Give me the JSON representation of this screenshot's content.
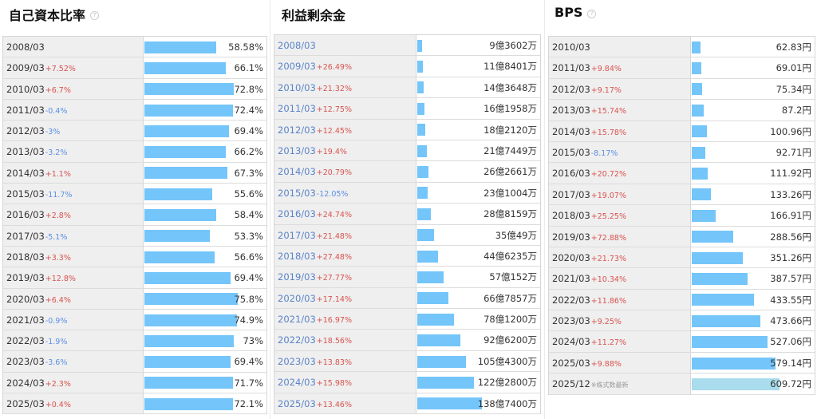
{
  "panels": [
    {
      "title": "自己資本比率",
      "rows": [
        {
          "period": "2008/03",
          "change": "",
          "dir": "",
          "value": "58.58%",
          "pct": 0.77
        },
        {
          "period": "2009/03",
          "change": "+7.52%",
          "dir": "up",
          "value": "66.1%",
          "pct": 0.87
        },
        {
          "period": "2010/03",
          "change": "+6.7%",
          "dir": "up",
          "value": "72.8%",
          "pct": 0.96
        },
        {
          "period": "2011/03",
          "change": "-0.4%",
          "dir": "down",
          "value": "72.4%",
          "pct": 0.95
        },
        {
          "period": "2012/03",
          "change": "-3%",
          "dir": "down",
          "value": "69.4%",
          "pct": 0.91
        },
        {
          "period": "2013/03",
          "change": "-3.2%",
          "dir": "down",
          "value": "66.2%",
          "pct": 0.87
        },
        {
          "period": "2014/03",
          "change": "+1.1%",
          "dir": "up",
          "value": "67.3%",
          "pct": 0.89
        },
        {
          "period": "2015/03",
          "change": "-11.7%",
          "dir": "down",
          "value": "55.6%",
          "pct": 0.73
        },
        {
          "period": "2016/03",
          "change": "+2.8%",
          "dir": "up",
          "value": "58.4%",
          "pct": 0.77
        },
        {
          "period": "2017/03",
          "change": "-5.1%",
          "dir": "down",
          "value": "53.3%",
          "pct": 0.7
        },
        {
          "period": "2018/03",
          "change": "+3.3%",
          "dir": "up",
          "value": "56.6%",
          "pct": 0.75
        },
        {
          "period": "2019/03",
          "change": "+12.8%",
          "dir": "up",
          "value": "69.4%",
          "pct": 0.92
        },
        {
          "period": "2020/03",
          "change": "+6.4%",
          "dir": "up",
          "value": "75.8%",
          "pct": 1.0
        },
        {
          "period": "2021/03",
          "change": "-0.9%",
          "dir": "down",
          "value": "74.9%",
          "pct": 0.99
        },
        {
          "period": "2022/03",
          "change": "-1.9%",
          "dir": "down",
          "value": "73%",
          "pct": 0.96
        },
        {
          "period": "2023/03",
          "change": "-3.6%",
          "dir": "down",
          "value": "69.4%",
          "pct": 0.92
        },
        {
          "period": "2024/03",
          "change": "+2.3%",
          "dir": "up",
          "value": "71.7%",
          "pct": 0.95
        },
        {
          "period": "2025/03",
          "change": "+0.4%",
          "dir": "up",
          "value": "72.1%",
          "pct": 0.95
        }
      ]
    },
    {
      "title": "利益剰余金",
      "rows": [
        {
          "period": "2008/03",
          "change": "",
          "dir": "",
          "value": "9億3602万",
          "pct": 0.05
        },
        {
          "period": "2009/03",
          "change": "+26.49%",
          "dir": "up",
          "value": "11億8401万",
          "pct": 0.06
        },
        {
          "period": "2010/03",
          "change": "+21.32%",
          "dir": "up",
          "value": "14億3648万",
          "pct": 0.07
        },
        {
          "period": "2011/03",
          "change": "+12.75%",
          "dir": "up",
          "value": "16億1958万",
          "pct": 0.08
        },
        {
          "period": "2012/03",
          "change": "+12.45%",
          "dir": "up",
          "value": "18億2120万",
          "pct": 0.09
        },
        {
          "period": "2013/03",
          "change": "+19.4%",
          "dir": "up",
          "value": "21億7449万",
          "pct": 0.11
        },
        {
          "period": "2014/03",
          "change": "+20.79%",
          "dir": "up",
          "value": "26億2661万",
          "pct": 0.13
        },
        {
          "period": "2015/03",
          "change": "-12.05%",
          "dir": "down",
          "value": "23億1004万",
          "pct": 0.12
        },
        {
          "period": "2016/03",
          "change": "+24.74%",
          "dir": "up",
          "value": "28億8159万",
          "pct": 0.15
        },
        {
          "period": "2017/03",
          "change": "+21.48%",
          "dir": "up",
          "value": "35億49万",
          "pct": 0.19
        },
        {
          "period": "2018/03",
          "change": "+27.48%",
          "dir": "up",
          "value": "44億6235万",
          "pct": 0.23
        },
        {
          "period": "2019/03",
          "change": "+27.77%",
          "dir": "up",
          "value": "57億152万",
          "pct": 0.3
        },
        {
          "period": "2020/03",
          "change": "+17.14%",
          "dir": "up",
          "value": "66億7857万",
          "pct": 0.35
        },
        {
          "period": "2021/03",
          "change": "+16.97%",
          "dir": "up",
          "value": "78億1200万",
          "pct": 0.41
        },
        {
          "period": "2022/03",
          "change": "+18.56%",
          "dir": "up",
          "value": "92億6200万",
          "pct": 0.49
        },
        {
          "period": "2023/03",
          "change": "+13.83%",
          "dir": "up",
          "value": "105億4300万",
          "pct": 0.55
        },
        {
          "period": "2024/03",
          "change": "+15.98%",
          "dir": "up",
          "value": "122億2800万",
          "pct": 0.64
        },
        {
          "period": "2025/03",
          "change": "+13.46%",
          "dir": "up",
          "value": "138億7400万",
          "pct": 0.73
        }
      ]
    },
    {
      "title": "BPS",
      "rows": [
        {
          "period": "2010/03",
          "change": "",
          "dir": "",
          "value": "62.83円",
          "pct": 0.1
        },
        {
          "period": "2011/03",
          "change": "+9.84%",
          "dir": "up",
          "value": "69.01円",
          "pct": 0.11
        },
        {
          "period": "2012/03",
          "change": "+9.17%",
          "dir": "up",
          "value": "75.34円",
          "pct": 0.12
        },
        {
          "period": "2013/03",
          "change": "+15.74%",
          "dir": "up",
          "value": "87.2円",
          "pct": 0.14
        },
        {
          "period": "2014/03",
          "change": "+15.78%",
          "dir": "up",
          "value": "100.96円",
          "pct": 0.17
        },
        {
          "period": "2015/03",
          "change": "-8.17%",
          "dir": "down",
          "value": "92.71円",
          "pct": 0.15
        },
        {
          "period": "2016/03",
          "change": "+20.72%",
          "dir": "up",
          "value": "111.92円",
          "pct": 0.18
        },
        {
          "period": "2017/03",
          "change": "+19.07%",
          "dir": "up",
          "value": "133.26円",
          "pct": 0.22
        },
        {
          "period": "2018/03",
          "change": "+25.25%",
          "dir": "up",
          "value": "166.91円",
          "pct": 0.27
        },
        {
          "period": "2019/03",
          "change": "+72.88%",
          "dir": "up",
          "value": "288.56円",
          "pct": 0.47
        },
        {
          "period": "2020/03",
          "change": "+21.73%",
          "dir": "up",
          "value": "351.26円",
          "pct": 0.58
        },
        {
          "period": "2021/03",
          "change": "+10.34%",
          "dir": "up",
          "value": "387.57円",
          "pct": 0.64
        },
        {
          "period": "2022/03",
          "change": "+11.86%",
          "dir": "up",
          "value": "433.55円",
          "pct": 0.71
        },
        {
          "period": "2023/03",
          "change": "+9.25%",
          "dir": "up",
          "value": "473.66円",
          "pct": 0.78
        },
        {
          "period": "2024/03",
          "change": "+11.27%",
          "dir": "up",
          "value": "527.06円",
          "pct": 0.86
        },
        {
          "period": "2025/03",
          "change": "+9.88%",
          "dir": "up",
          "value": "579.14円",
          "pct": 0.95
        },
        {
          "period": "2025/12",
          "change": "",
          "dir": "",
          "note": "※株式数最新",
          "value": "609.72円",
          "pct": 1.0,
          "future": true
        }
      ]
    }
  ],
  "colors": {
    "bar": "#74c5f9",
    "bar_future": "#a9dcec",
    "up": "#d9534f",
    "down": "#5b8fe6"
  },
  "icons": {
    "help": "question-circle-icon"
  }
}
